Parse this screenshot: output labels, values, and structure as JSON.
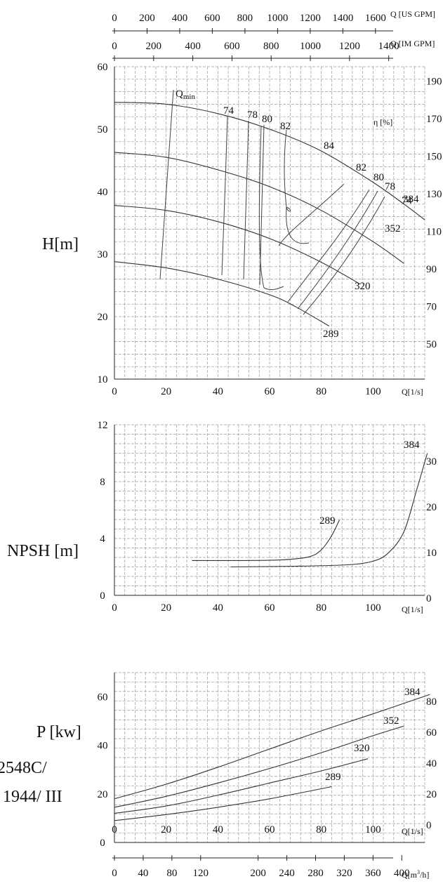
{
  "chart_data": [
    {
      "type": "line",
      "title": "",
      "ylabel": "H[m]",
      "xlabel": "Q[1/s]",
      "xlim": [
        0,
        120
      ],
      "ylim": [
        10,
        60
      ],
      "x_ticks": [
        "0",
        "20",
        "40",
        "60",
        "80",
        "100"
      ],
      "y_ticks": [
        "10",
        "20",
        "30",
        "40",
        "50",
        "60"
      ],
      "right_axis": {
        "label": "η [%]",
        "ticks": [
          "50",
          "70",
          "90",
          "110",
          "130",
          "150",
          "170",
          "190"
        ]
      },
      "top_axes": [
        {
          "label": "Q [US GPM]",
          "ticks": [
            "0",
            "200",
            "400",
            "600",
            "800",
            "1000",
            "1200",
            "1400",
            "1600"
          ]
        },
        {
          "label": "Q [IM GPM]",
          "ticks": [
            "0",
            "200",
            "400",
            "600",
            "800",
            "1000",
            "1200",
            "1400"
          ]
        }
      ],
      "qmin_label": "Qmin",
      "qmin_sub": "min",
      "qmin_main": "Q",
      "series": [
        {
          "name": "384",
          "x": [
            0,
            20,
            40,
            60,
            80,
            100,
            112,
            120
          ],
          "y": [
            54.3,
            54,
            52.5,
            50,
            46.5,
            41.5,
            38,
            35.5
          ]
        },
        {
          "name": "352",
          "x": [
            0,
            20,
            40,
            60,
            80,
            100,
            112
          ],
          "y": [
            46.3,
            45.5,
            43.5,
            40.8,
            37,
            32,
            28.5
          ]
        },
        {
          "name": "320",
          "x": [
            0,
            20,
            40,
            60,
            80,
            95
          ],
          "y": [
            37.8,
            37,
            35.2,
            32.5,
            28.7,
            25.2
          ]
        },
        {
          "name": "289",
          "x": [
            0,
            20,
            40,
            60,
            70,
            83
          ],
          "y": [
            28.8,
            27.8,
            26,
            23.5,
            21.6,
            18.5
          ]
        }
      ],
      "efficiency_labels": [
        "74",
        "78",
        "80",
        "82",
        "84",
        "82",
        "80",
        "78",
        "74"
      ]
    },
    {
      "type": "line",
      "title": "",
      "ylabel": "NPSH [m]",
      "xlabel": "Q[1/s]",
      "xlim": [
        0,
        120
      ],
      "ylim": [
        0,
        12
      ],
      "x_ticks": [
        "0",
        "20",
        "40",
        "60",
        "80",
        "100"
      ],
      "y_ticks": [
        "0",
        "4",
        "8",
        "12"
      ],
      "right_axis": {
        "label": "",
        "ticks": [
          "0",
          "10",
          "20",
          "30"
        ]
      },
      "series": [
        {
          "name": "289",
          "x": [
            30,
            50,
            65,
            75,
            80,
            84,
            87
          ],
          "y": [
            2.45,
            2.45,
            2.5,
            2.7,
            3.2,
            4.2,
            5.3
          ]
        },
        {
          "name": "384",
          "x": [
            45,
            70,
            90,
            100,
            106,
            112,
            117,
            121
          ],
          "y": [
            2.0,
            2.05,
            2.15,
            2.4,
            3.0,
            4.5,
            7.5,
            10.0
          ]
        }
      ]
    },
    {
      "type": "line",
      "title": "",
      "ylabel": "P [kw]",
      "xlabel": "Q[1/s]",
      "xlim": [
        0,
        120
      ],
      "ylim": [
        0,
        70
      ],
      "x_ticks": [
        "0",
        "20",
        "40",
        "60",
        "80",
        "100"
      ],
      "y_ticks": [
        "0",
        "20",
        "40",
        "60"
      ],
      "right_axis": {
        "label": "",
        "ticks": [
          "0",
          "20",
          "40",
          "60",
          "80"
        ]
      },
      "bottom_axis": {
        "label": "Q[m³/h]",
        "label_main": "Q[m",
        "label_sup": "3",
        "label_tail": "/h]",
        "ticks": [
          "0",
          "40",
          "80",
          "120",
          "200",
          "240",
          "280",
          "320",
          "360",
          "400"
        ]
      },
      "series": [
        {
          "name": "384",
          "x": [
            0,
            20,
            40,
            60,
            80,
            100,
            122
          ],
          "y": [
            18,
            24,
            31,
            38.5,
            46,
            53,
            61
          ]
        },
        {
          "name": "352",
          "x": [
            0,
            20,
            40,
            60,
            80,
            100,
            112
          ],
          "y": [
            14.5,
            19,
            24.5,
            30.5,
            37,
            44,
            48
          ]
        },
        {
          "name": "320",
          "x": [
            0,
            20,
            40,
            60,
            80,
            98
          ],
          "y": [
            12,
            15,
            19.5,
            24.5,
            29.5,
            34.5
          ]
        },
        {
          "name": "289",
          "x": [
            0,
            20,
            40,
            60,
            84
          ],
          "y": [
            9,
            11.5,
            14.5,
            18,
            23
          ]
        }
      ]
    }
  ],
  "model_label_line1": "2548C/",
  "model_label_line2": "1944/ III"
}
